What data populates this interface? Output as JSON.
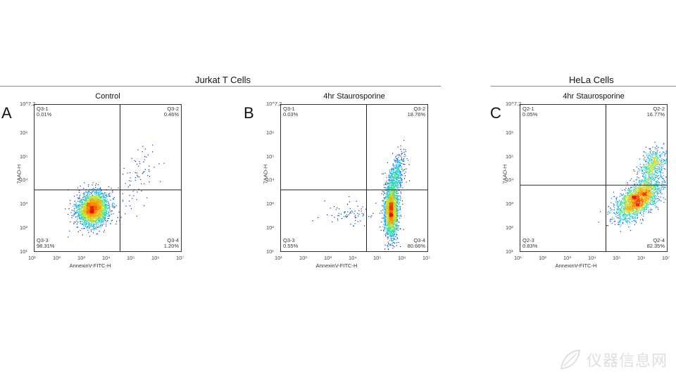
{
  "group_titles": {
    "jurkat": "Jurkat T Cells",
    "hela": "HeLa Cells"
  },
  "panels": [
    {
      "letter": "A",
      "title": "Control"
    },
    {
      "letter": "B",
      "title": "4hr Staurosporine"
    },
    {
      "letter": "C",
      "title": "4hr Staurosporine"
    }
  ],
  "axis_labels": {
    "x": "AnnexinV-FITC-H",
    "y": "7AAD-H"
  },
  "watermark": {
    "text": "仪器信息网",
    "icon": "leaf-logo-icon"
  },
  "chart_data": [
    {
      "type": "scatter",
      "title": "Control",
      "xlabel": "AnnexinV-FITC-H",
      "ylabel": "7AAD-H",
      "x_scale": "log",
      "y_scale": "log",
      "xlim": [
        1,
        7
      ],
      "ylim": [
        1,
        7.2
      ],
      "x_ticks": [
        "10¹",
        "10²",
        "10³",
        "10⁴",
        "10⁵",
        "10⁶",
        "10⁷"
      ],
      "y_ticks": [
        "10¹",
        "10²",
        "10³",
        "10⁴",
        "10⁵",
        "10⁶",
        "10^7.2"
      ],
      "gate": {
        "x": 4.5,
        "y": 3.6
      },
      "quadrants": [
        {
          "name": "Q3-1",
          "value": "0.01%"
        },
        {
          "name": "Q3-2",
          "value": "0.46%"
        },
        {
          "name": "Q3-3",
          "value": "98.31%"
        },
        {
          "name": "Q3-4",
          "value": "1.20%"
        }
      ],
      "populations": [
        {
          "x": 3.4,
          "y": 2.8,
          "sx": 0.32,
          "sy": 0.35,
          "rho": 0.1,
          "weight": 0.97
        },
        {
          "x": 5.2,
          "y": 4.1,
          "sx": 0.45,
          "sy": 0.7,
          "rho": 0.5,
          "weight": 0.03
        }
      ]
    },
    {
      "type": "scatter",
      "title": "4hr Staurosporine",
      "xlabel": "AnnexinV-FITC-H",
      "ylabel": "7AAD-H",
      "x_scale": "log",
      "y_scale": "log",
      "xlim": [
        1,
        7
      ],
      "ylim": [
        1,
        7.2
      ],
      "x_ticks": [
        "10¹",
        "10²",
        "10³",
        "10⁴",
        "10⁵",
        "10⁶",
        "10⁷"
      ],
      "y_ticks": [
        "10¹",
        "10²",
        "10³",
        "10⁴",
        "10⁵",
        "10⁶",
        "10^7.2"
      ],
      "gate": {
        "x": 4.5,
        "y": 3.6
      },
      "quadrants": [
        {
          "name": "Q3-1",
          "value": "0.03%"
        },
        {
          "name": "Q3-2",
          "value": "18.76%"
        },
        {
          "name": "Q3-3",
          "value": "0.55%"
        },
        {
          "name": "Q3-4",
          "value": "80.66%"
        }
      ],
      "populations": [
        {
          "x": 5.5,
          "y": 2.7,
          "sx": 0.14,
          "sy": 0.55,
          "rho": 0.0,
          "weight": 0.78
        },
        {
          "x": 5.7,
          "y": 4.2,
          "sx": 0.17,
          "sy": 0.45,
          "rho": 0.4,
          "weight": 0.19
        },
        {
          "x": 3.8,
          "y": 2.6,
          "sx": 0.6,
          "sy": 0.25,
          "rho": 0.0,
          "weight": 0.03
        }
      ]
    },
    {
      "type": "scatter",
      "title": "4hr Staurosporine",
      "xlabel": "AnnexinV-FITC-H",
      "ylabel": "7AAD-H",
      "x_scale": "log",
      "y_scale": "log",
      "xlim": [
        1,
        7
      ],
      "ylim": [
        1,
        7.2
      ],
      "x_ticks": [
        "10¹",
        "10²",
        "10³",
        "10⁴",
        "10⁵",
        "10⁶",
        "10⁷"
      ],
      "y_ticks": [
        "10¹",
        "10²",
        "10³",
        "10⁴",
        "10⁵",
        "10⁶",
        "10^7.2"
      ],
      "gate": {
        "x": 4.5,
        "y": 3.8
      },
      "quadrants": [
        {
          "name": "Q2-1",
          "value": "0.05%"
        },
        {
          "name": "Q2-2",
          "value": "16.77%"
        },
        {
          "name": "Q2-3",
          "value": "0.83%"
        },
        {
          "name": "Q2-4",
          "value": "82.35%"
        }
      ],
      "populations": [
        {
          "x": 5.8,
          "y": 3.2,
          "sx": 0.45,
          "sy": 0.42,
          "rho": 0.55,
          "weight": 0.8
        },
        {
          "x": 6.4,
          "y": 4.6,
          "sx": 0.25,
          "sy": 0.35,
          "rho": 0.3,
          "weight": 0.2
        }
      ]
    }
  ]
}
